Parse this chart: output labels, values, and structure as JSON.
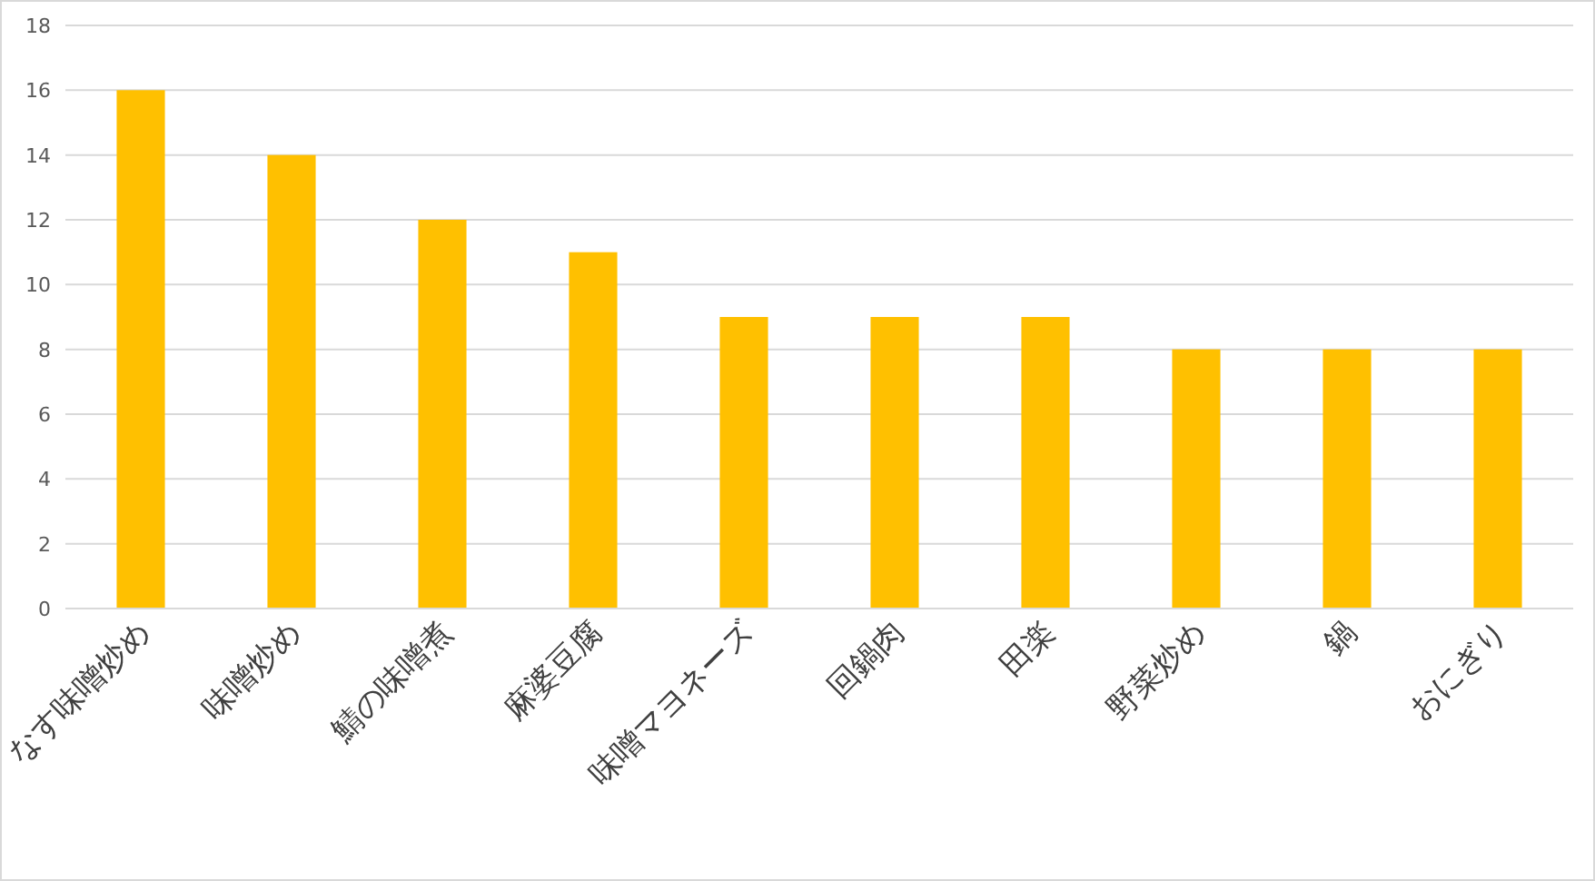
{
  "chart_data": {
    "type": "bar",
    "categories": [
      "なす味噌炒め",
      "味噌炒め",
      "鯖の味噌煮",
      "麻婆豆腐",
      "味噌マヨネーズ",
      "回鍋肉",
      "田楽",
      "野菜炒め",
      "鍋",
      "おにぎり"
    ],
    "values": [
      16,
      14,
      12,
      11,
      9,
      9,
      9,
      8,
      8,
      8
    ],
    "color": "#ffc000",
    "ylim": [
      0,
      18
    ],
    "yticks": [
      0,
      2,
      4,
      6,
      8,
      10,
      12,
      14,
      16,
      18
    ],
    "grid": "y"
  }
}
